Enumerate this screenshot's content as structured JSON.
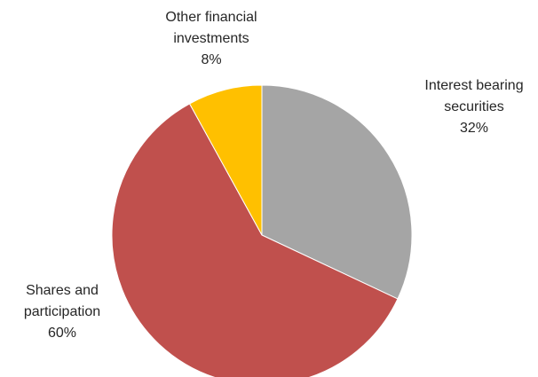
{
  "chart_data": {
    "type": "pie",
    "slices": [
      {
        "name": "Interest bearing securities",
        "label_lines": [
          "Interest bearing",
          "securities"
        ],
        "value": 32,
        "value_label": "32%",
        "color": "#A5A5A5"
      },
      {
        "name": "Shares and participation",
        "label_lines": [
          "Shares and",
          "participation"
        ],
        "value": 60,
        "value_label": "60%",
        "color": "#C0504D"
      },
      {
        "name": "Other financial investments",
        "label_lines": [
          "Other financial",
          "investments"
        ],
        "value": 8,
        "value_label": "8%",
        "color": "#FFC000"
      }
    ],
    "start_angle_deg": 0,
    "direction": "clockwise",
    "legend": "none",
    "label_placement": "outside"
  }
}
